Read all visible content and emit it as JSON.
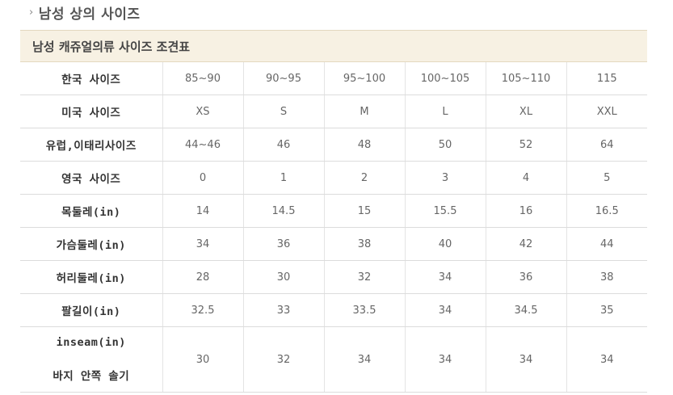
{
  "page": {
    "heading": "남성 상의 사이즈",
    "heading_arrow": "›"
  },
  "table": {
    "title": "남성 캐쥬얼의류 사이즈 조견표",
    "rows": [
      {
        "label": "한국 사이즈",
        "values": [
          "85~90",
          "90~95",
          "95~100",
          "100~105",
          "105~110",
          "115"
        ]
      },
      {
        "label": "미국 사이즈",
        "values": [
          "XS",
          "S",
          "M",
          "L",
          "XL",
          "XXL"
        ]
      },
      {
        "label": "유럽,이태리사이즈",
        "values": [
          "44~46",
          "46",
          "48",
          "50",
          "52",
          "64"
        ]
      },
      {
        "label": "영국 사이즈",
        "values": [
          "0",
          "1",
          "2",
          "3",
          "4",
          "5"
        ]
      },
      {
        "label": "목둘레(in)",
        "values": [
          "14",
          "14.5",
          "15",
          "15.5",
          "16",
          "16.5"
        ]
      },
      {
        "label": "가슴둘레(in)",
        "values": [
          "34",
          "36",
          "38",
          "40",
          "42",
          "44"
        ]
      },
      {
        "label": "허리둘레(in)",
        "values": [
          "28",
          "30",
          "32",
          "34",
          "36",
          "38"
        ]
      },
      {
        "label": "팔길이(in)",
        "values": [
          "32.5",
          "33",
          "33.5",
          "34",
          "34.5",
          "35"
        ]
      }
    ],
    "last_row": {
      "label_line1": "inseam(in)",
      "label_line2": "바지 안쪽 솔기",
      "values": [
        "30",
        "32",
        "34",
        "34",
        "34",
        "34"
      ]
    }
  }
}
